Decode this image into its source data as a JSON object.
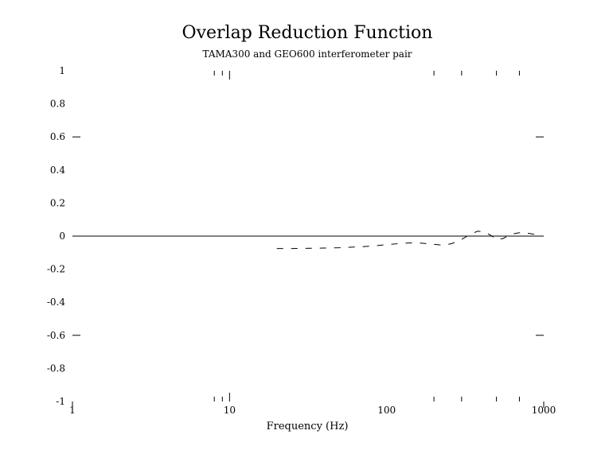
{
  "chart_data": {
    "type": "line",
    "title": "Overlap Reduction Function",
    "subtitle": "TAMA300 and GEO600 interferometer pair",
    "xlabel": "Frequency (Hz)",
    "ylabel": "",
    "x_scale": "log",
    "xlim": [
      1,
      1000
    ],
    "ylim": [
      -1,
      1
    ],
    "xticks": [
      1,
      10,
      100,
      1000
    ],
    "xtick_labels": [
      "1",
      "10",
      "100",
      "1000"
    ],
    "yticks": [
      1,
      0.8,
      0.6,
      0.4,
      0.2,
      0,
      -0.2,
      -0.4,
      -0.6,
      -0.8,
      -1
    ],
    "ytick_labels": [
      "1",
      "0.8",
      "0.6",
      "0.4",
      "0.2",
      "0",
      "-0.2",
      "-0.4",
      "-0.6",
      "-0.8",
      "-1"
    ],
    "grid": false,
    "series": [
      {
        "name": "",
        "x": [
          20,
          25,
          30,
          40,
          50,
          60,
          70,
          80,
          90,
          100,
          120,
          150,
          180,
          200,
          230,
          260,
          300,
          340,
          380,
          420,
          460,
          500,
          550,
          600,
          650,
          700,
          760,
          820,
          880
        ],
        "y": [
          -0.075,
          -0.075,
          -0.074,
          -0.072,
          -0.07,
          -0.067,
          -0.064,
          -0.06,
          -0.056,
          -0.052,
          -0.045,
          -0.04,
          -0.045,
          -0.05,
          -0.055,
          -0.045,
          -0.02,
          0.01,
          0.03,
          0.025,
          0.005,
          -0.02,
          -0.015,
          0.005,
          0.015,
          0.02,
          0.02,
          0.015,
          0.01
        ]
      }
    ]
  }
}
